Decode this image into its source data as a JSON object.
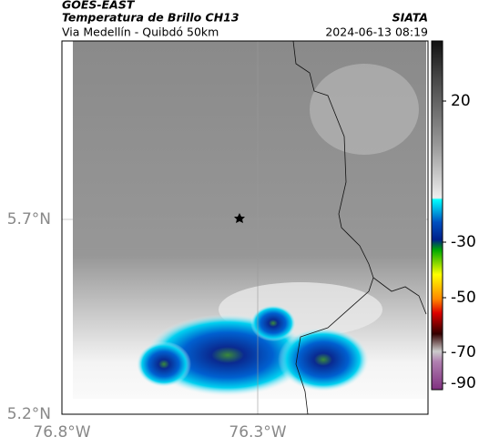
{
  "header": {
    "satellite": "GOES-EAST",
    "product": "Temperatura de Brillo CH13",
    "route": "Via Medellín - Quibdó 50km",
    "source": "SIATA",
    "datetime": "2024-06-13 08:19"
  },
  "map": {
    "lat_labels": [
      "5.7°N",
      "5.2°N"
    ],
    "lon_labels": [
      "76.8°W",
      "76.3°W"
    ]
  },
  "colorbar": {
    "labels": [
      "20",
      "-30",
      "-50",
      "-70",
      "-90"
    ]
  }
}
